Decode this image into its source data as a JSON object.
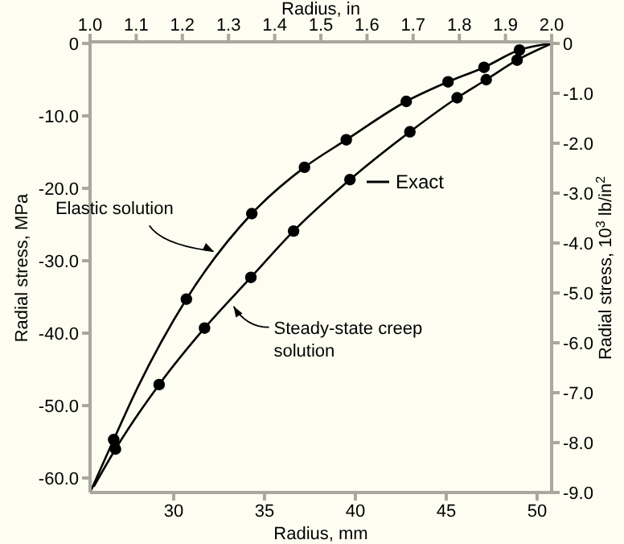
{
  "chart_data": {
    "type": "line",
    "xlabel": "Radius,  mm",
    "x2label": "Radius, in",
    "ylabel": "Radial stress, MPa",
    "y2label": "Radial stress, 10$^{3}$ lb/in$^{2}$",
    "xlim": [
      25.4,
      50.8
    ],
    "xticks": [
      30,
      35,
      40,
      45,
      50
    ],
    "x2lim": [
      1.0,
      2.0
    ],
    "x2ticks": [
      {
        "value": 1.0,
        "label": "1.0"
      },
      {
        "value": 1.1,
        "label": "1.1"
      },
      {
        "value": 1.2,
        "label": "1.2"
      },
      {
        "value": 1.3,
        "label": "1.3"
      },
      {
        "value": 1.4,
        "label": "1.4"
      },
      {
        "value": 1.5,
        "label": "1.5"
      },
      {
        "value": 1.6,
        "label": "1.6"
      },
      {
        "value": 1.7,
        "label": "1.7"
      },
      {
        "value": 1.8,
        "label": "1.8"
      },
      {
        "value": 1.9,
        "label": "1.9"
      },
      {
        "value": 2.0,
        "label": "2.0"
      }
    ],
    "ylim": [
      -62,
      0
    ],
    "yticks": [
      0,
      {
        "value": -10,
        "label": "-10.0"
      },
      {
        "value": -20,
        "label": "-20.0"
      },
      {
        "value": -30,
        "label": "-30.0"
      },
      {
        "value": -40,
        "label": "-40.0"
      },
      {
        "value": -50,
        "label": "-50.0"
      },
      {
        "value": -60,
        "label": "-60.0"
      }
    ],
    "y2lim": [
      -9,
      0
    ],
    "y2ticks": [
      0,
      {
        "value": -1,
        "label": "-1.0"
      },
      {
        "value": -2,
        "label": "-2.0"
      },
      {
        "value": -3,
        "label": "-3.0"
      },
      {
        "value": -4,
        "label": "-4.0"
      },
      {
        "value": -5,
        "label": "-5.0"
      },
      {
        "value": -6,
        "label": "-6.0"
      },
      {
        "value": -7,
        "label": "-7.0"
      },
      {
        "value": -8,
        "label": "-8.0"
      },
      {
        "value": -9,
        "label": "-9.0"
      }
    ],
    "grid": false,
    "legend": "right",
    "series": [
      {
        "name": "Exact",
        "color": "#000000",
        "marker": "none",
        "x": [
          25.4,
          26.7,
          28,
          30.7,
          34.3,
          37.2,
          39.5,
          42.8,
          45.1,
          47.08,
          49.03,
          50.8
        ],
        "values": [
          -62,
          -54.7,
          -47.6,
          -35.3,
          -23.5,
          -17.1,
          -13.3,
          -8.0,
          -5.3,
          -3.3,
          -0.9,
          0
        ]
      },
      {
        "color": "#000000",
        "marker": "none",
        "x": [
          25.6,
          26.8,
          29.2,
          31.7,
          34.25,
          36.6,
          39.7,
          43.0,
          45.6,
          47.2,
          48.9,
          50.8
        ],
        "values": [
          -61.2,
          -56.0,
          -47.1,
          -39.3,
          -32.3,
          -25.9,
          -18.8,
          -12.2,
          -7.5,
          -5.0,
          -2.3,
          0
        ]
      },
      {
        "type": "scatter",
        "color": "#000000",
        "marker": "circle",
        "x": [
          26.7,
          30.7,
          34.3,
          37.2,
          39.5,
          42.8,
          45.1,
          47.08,
          49.03
        ],
        "values": [
          -54.7,
          -35.3,
          -23.5,
          -17.1,
          -13.3,
          -8.0,
          -5.3,
          -3.3,
          -0.9
        ]
      },
      {
        "type": "scatter",
        "color": "#000000",
        "marker": "circle",
        "x": [
          26.8,
          29.2,
          31.7,
          34.25,
          36.6,
          39.7,
          43.0,
          45.6,
          47.2,
          48.9
        ],
        "values": [
          -56.0,
          -47.1,
          -39.3,
          -32.3,
          -25.9,
          -18.8,
          -12.2,
          -7.5,
          -5.0,
          -2.3
        ]
      }
    ],
    "annotations": [
      {
        "text": "Elastic solution",
        "x": 32.2,
        "y": -28.7
      },
      {
        "text": "Steady-state creep solution",
        "x": 33.3,
        "y": -36.3
      }
    ]
  }
}
